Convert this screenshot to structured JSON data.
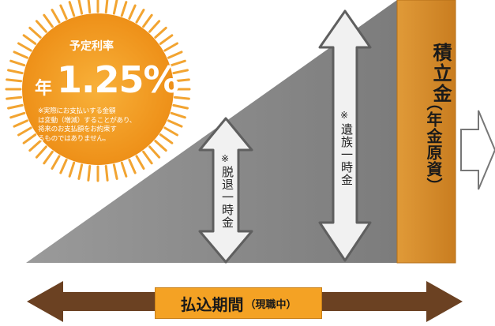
{
  "badge": {
    "title": "予定利率",
    "year": "年",
    "rate": "1.25%",
    "note_lines": [
      "※実際にお支払いする金額",
      "は変動（増減）することがあり、",
      "将来のお支払額をお約束す",
      "るものではありません。"
    ]
  },
  "arrows": {
    "retirement": {
      "mark": "※",
      "label": "脱退一時金"
    },
    "survivor": {
      "mark": "※",
      "label": "遺族一時金"
    }
  },
  "fund": {
    "title": "積立金",
    "subtitle": "（年金原資）"
  },
  "period": {
    "label": "払込期間",
    "sub": "（現職中）"
  },
  "colors": {
    "badge": "#f6a321",
    "triangle": "#878787",
    "fund_bar": "#d98f2a",
    "period_arrow": "#6b4122",
    "period_box": "#f4a224"
  }
}
